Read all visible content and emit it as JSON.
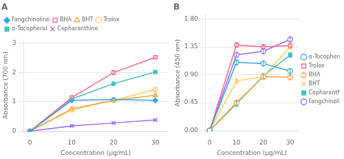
{
  "chart_data": [
    {
      "type": "line",
      "title": "A",
      "xlabel": "Concentration (μg/mL)",
      "ylabel": "Absorbance (700 nm)",
      "x": [
        0,
        10,
        20,
        30
      ],
      "series": [
        {
          "name": "Fangchinoline",
          "values": [
            0,
            1.05,
            1.08,
            1.05
          ],
          "errors": [
            0,
            0.04,
            0.04,
            0.04
          ],
          "marker": "diamond"
        },
        {
          "name": "BHA",
          "values": [
            0,
            1.15,
            2.0,
            2.52
          ],
          "errors": [
            0,
            0.05,
            0.07,
            0.06
          ],
          "marker": "square-open"
        },
        {
          "name": "BHT",
          "values": [
            0,
            0.76,
            1.05,
            1.22
          ],
          "errors": [
            0,
            0.04,
            0.04,
            0.04
          ],
          "marker": "triangle-open"
        },
        {
          "name": "Trolox",
          "values": [
            0,
            0.73,
            1.05,
            1.42
          ],
          "errors": [
            0,
            0.04,
            0.04,
            0.05
          ],
          "marker": "circle-open"
        },
        {
          "name": "α-Tocopheral",
          "values": [
            0,
            1.1,
            1.62,
            2.02
          ],
          "errors": [
            0,
            0.04,
            0.05,
            0.05
          ],
          "marker": "square"
        },
        {
          "name": "Cepharanthine",
          "values": [
            0,
            0.18,
            0.28,
            0.38
          ],
          "errors": [
            0,
            0.02,
            0.02,
            0.02
          ],
          "marker": "x"
        }
      ],
      "xlim": [
        -1.5,
        33
      ],
      "xticks": [
        0,
        10,
        20,
        30
      ],
      "ylim": [
        -0.02,
        3.15
      ],
      "yticks": [
        0,
        1,
        2,
        3
      ],
      "grid": "y",
      "legend": "upper left"
    },
    {
      "type": "line",
      "title": "B",
      "xlabel": "Concentration (μg/mL)",
      "ylabel": "Absorbance (450 nm)",
      "x": [
        0,
        10,
        20,
        30
      ],
      "series": [
        {
          "name": "α-Tocopherol",
          "values": [
            0,
            1.1,
            1.08,
            0.96
          ],
          "errors": [
            0,
            0.04,
            0.04,
            0.04
          ],
          "marker": "circle-open"
        },
        {
          "name": "Trolox",
          "values": [
            0,
            1.38,
            1.35,
            1.37
          ],
          "errors": [
            0,
            0.04,
            0.04,
            0.04
          ],
          "marker": "square-open"
        },
        {
          "name": "BHA",
          "values": [
            0,
            0.45,
            0.87,
            0.86
          ],
          "errors": [
            0,
            0.04,
            0.04,
            0.04
          ],
          "marker": "pentagon-open"
        },
        {
          "name": "BHT",
          "values": [
            0,
            0.8,
            0.87,
            1.35
          ],
          "errors": [
            0,
            0.04,
            0.04,
            0.04
          ],
          "marker": "x"
        },
        {
          "name": "Cepharanthine",
          "values": [
            0,
            0.43,
            0.88,
            1.22
          ],
          "errors": [
            0,
            0.04,
            0.04,
            0.04
          ],
          "marker": "square"
        },
        {
          "name": "Fangchinoline",
          "values": [
            0,
            1.22,
            1.28,
            1.47
          ],
          "errors": [
            0,
            0.04,
            0.04,
            0.04
          ],
          "marker": "circle-open"
        }
      ],
      "xlim": [
        -1.5,
        33
      ],
      "xticks": [
        0,
        10,
        20,
        30
      ],
      "ylim": [
        -0.02,
        1.88
      ],
      "yticks": [
        {
          "value": 0,
          "label": "0.00"
        },
        0.45,
        {
          "value": 0.9,
          "label": "0.90"
        },
        1.35,
        {
          "value": 1.8,
          "label": "1.80"
        }
      ],
      "grid": "y",
      "legend": "center right"
    }
  ]
}
